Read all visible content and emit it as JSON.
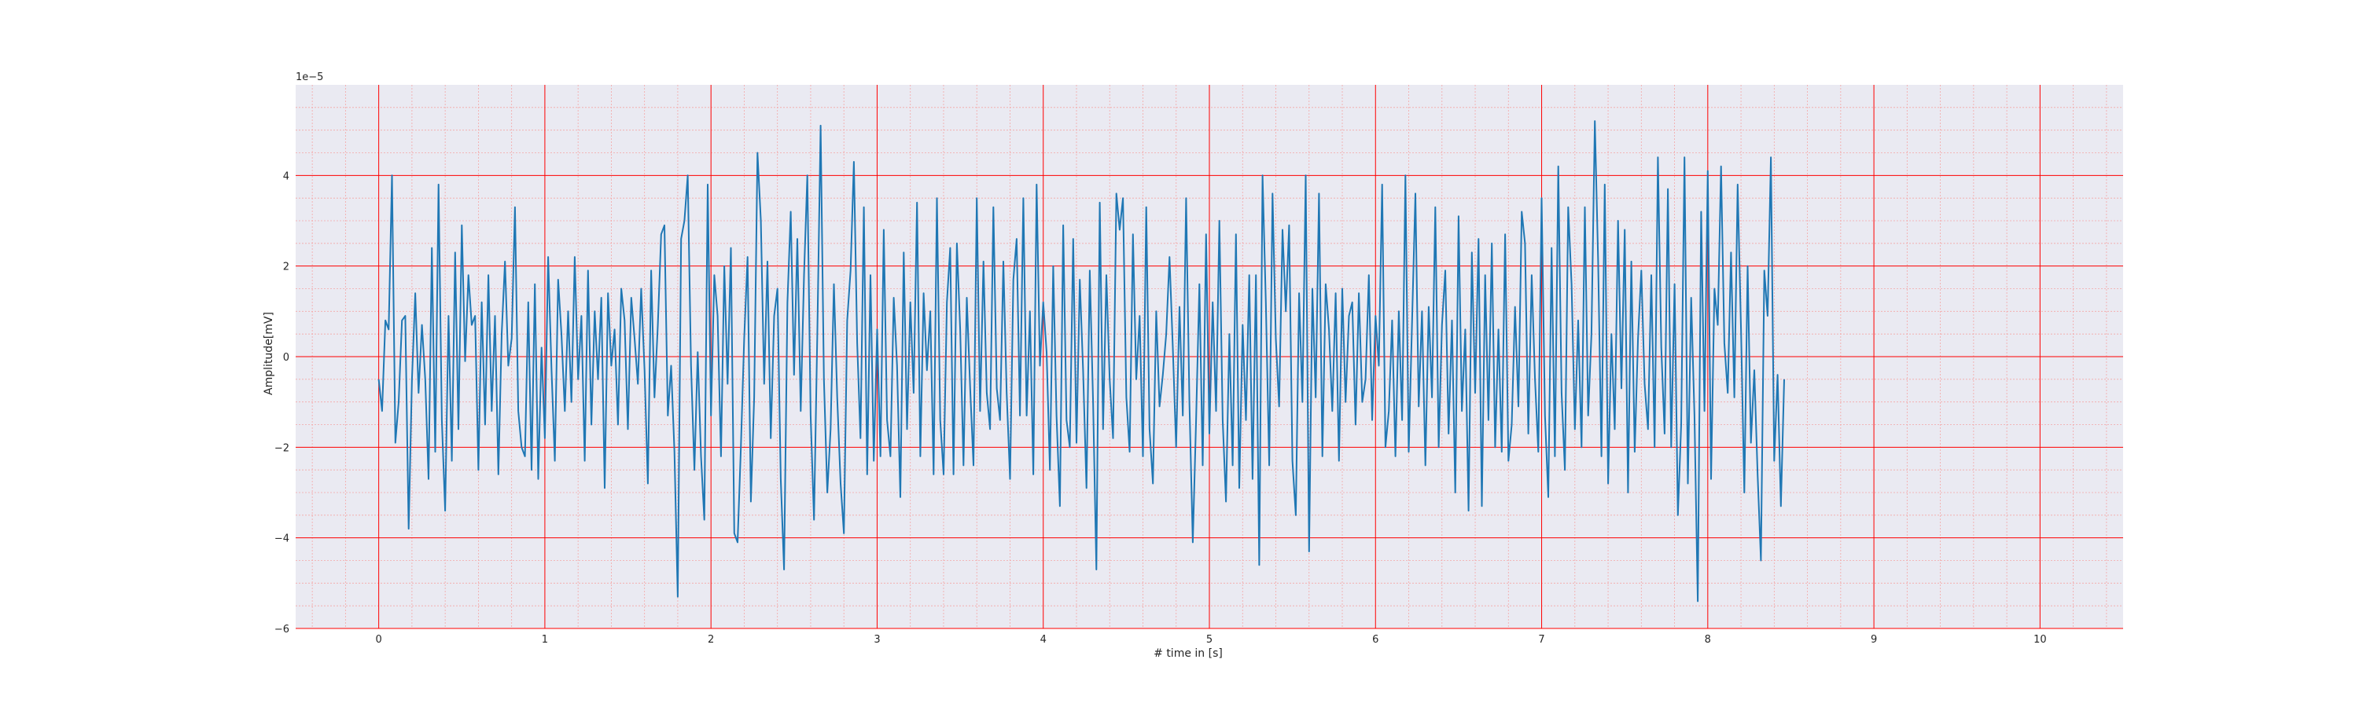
{
  "chart_data": {
    "type": "line",
    "title": "",
    "xlabel": "# time in [s]",
    "ylabel": "Amplitude[mV]",
    "offset_text": "1e−5",
    "xlim": [
      -0.5,
      10.5
    ],
    "ylim": [
      -6,
      6
    ],
    "y_scale_factor": 1e-05,
    "xticks": [
      0,
      1,
      2,
      3,
      4,
      5,
      6,
      7,
      8,
      9,
      10
    ],
    "xtick_labels": [
      "0",
      "1",
      "2",
      "3",
      "4",
      "5",
      "6",
      "7",
      "8",
      "9",
      "10"
    ],
    "yticks": [
      -6,
      -4,
      -2,
      0,
      2,
      4
    ],
    "ytick_labels": [
      "−6",
      "−4",
      "−2",
      "0",
      "2",
      "4"
    ],
    "grid": {
      "major": true,
      "minor": true,
      "major_color": "#ff0000",
      "minor_color": "#f4a6a6"
    },
    "plot_background": "#eaeaf2",
    "series": [
      {
        "color": "#1f77b4",
        "x_start": 0,
        "x_step": 0.02,
        "values": [
          -0.5,
          -1.2,
          0.8,
          0.6,
          4.0,
          -1.9,
          -1.0,
          0.8,
          0.9,
          -3.8,
          -0.5,
          1.4,
          -0.8,
          0.7,
          -0.5,
          -2.7,
          2.4,
          -2.1,
          3.8,
          -1.4,
          -3.4,
          0.9,
          -2.3,
          2.3,
          -1.6,
          2.9,
          -0.1,
          1.8,
          0.7,
          0.9,
          -2.5,
          1.2,
          -1.5,
          1.8,
          -1.2,
          0.9,
          -2.6,
          0.5,
          2.1,
          -0.2,
          0.4,
          3.3,
          -1.2,
          -2.0,
          -2.2,
          1.2,
          -2.5,
          1.6,
          -2.7,
          0.2,
          -1.8,
          2.2,
          -0.3,
          -2.3,
          1.7,
          0.5,
          -1.2,
          1.0,
          -1.0,
          2.2,
          -0.5,
          0.9,
          -2.3,
          1.9,
          -1.5,
          1.0,
          -0.5,
          1.3,
          -2.9,
          1.4,
          -0.2,
          0.6,
          -1.5,
          1.5,
          0.8,
          -1.6,
          1.3,
          0.4,
          -0.6,
          1.5,
          -0.3,
          -2.8,
          1.9,
          -0.9,
          0.7,
          2.7,
          2.9,
          -1.3,
          -0.2,
          -2.1,
          -5.3,
          2.6,
          3.0,
          4.0,
          -0.2,
          -2.5,
          0.1,
          -2.2,
          -3.6,
          3.8,
          -1.3,
          1.8,
          0.9,
          -2.2,
          2.0,
          -0.6,
          2.4,
          -3.9,
          -4.1,
          -2.0,
          0.4,
          2.2,
          -3.2,
          -0.9,
          4.5,
          3.0,
          -0.6,
          2.1,
          -1.8,
          0.9,
          1.5,
          -2.7,
          -4.7,
          1.2,
          3.2,
          -0.4,
          2.6,
          -1.2,
          1.8,
          4.0,
          -1.3,
          -3.6,
          0.5,
          5.1,
          -0.5,
          -3.0,
          -1.6,
          1.6,
          -0.9,
          -2.8,
          -3.9,
          0.8,
          1.9,
          4.3,
          0.3,
          -1.8,
          3.3,
          -2.6,
          1.8,
          -2.3,
          0.6,
          -2.2,
          2.8,
          -1.4,
          -2.2,
          1.3,
          -0.2,
          -3.1,
          2.3,
          -1.6,
          1.2,
          -0.8,
          3.4,
          -2.2,
          1.4,
          -0.3,
          1.0,
          -2.6,
          3.5,
          -1.4,
          -2.6,
          1.2,
          2.4,
          -2.6,
          2.5,
          0.6,
          -2.4,
          1.3,
          -0.7,
          -2.4,
          3.5,
          -1.2,
          2.1,
          -0.8,
          -1.6,
          3.3,
          -0.7,
          -1.4,
          2.1,
          -0.8,
          -2.7,
          1.7,
          2.6,
          -1.3,
          3.5,
          -1.3,
          1.0,
          -2.6,
          3.8,
          -0.2,
          1.2,
          0.1,
          -2.5,
          2.0,
          -1.3,
          -3.3,
          2.9,
          -1.4,
          -2.0,
          2.6,
          -1.9,
          1.7,
          -0.3,
          -2.9,
          1.9,
          -1.0,
          -4.7,
          3.4,
          -1.6,
          1.8,
          -0.5,
          -1.8,
          3.6,
          2.8,
          3.5,
          -0.9,
          -2.1,
          2.7,
          -0.5,
          0.9,
          -2.2,
          3.3,
          -1.6,
          -2.8,
          1.0,
          -1.1,
          -0.4,
          0.5,
          2.2,
          0.2,
          -2.0,
          1.1,
          -1.3,
          3.5,
          -1.0,
          -4.1,
          -1.4,
          1.6,
          -2.4,
          2.7,
          -1.7,
          1.2,
          -1.2,
          3.0,
          -1.4,
          -3.2,
          0.5,
          -2.4,
          2.7,
          -2.9,
          0.7,
          -1.4,
          1.8,
          -2.7,
          1.8,
          -4.6,
          4.0,
          1.2,
          -2.4,
          3.6,
          0.4,
          -1.1,
          2.8,
          1.0,
          2.9,
          -2.3,
          -3.5,
          1.4,
          -1.0,
          4.0,
          -4.3,
          1.5,
          -0.9,
          3.6,
          -2.2,
          1.6,
          0.6,
          -1.2,
          1.4,
          -2.3,
          1.5,
          -1.0,
          0.9,
          1.2,
          -1.5,
          1.4,
          -1.0,
          -0.5,
          1.8,
          -1.4,
          0.9,
          -0.2,
          3.8,
          -2.0,
          -1.2,
          0.8,
          -2.2,
          1.0,
          -1.4,
          4.0,
          -2.1,
          0.8,
          3.6,
          -1.1,
          1.0,
          -2.4,
          1.1,
          -0.9,
          3.3,
          -2.0,
          0.7,
          1.9,
          -1.7,
          0.8,
          -3.0,
          3.1,
          -1.2,
          0.6,
          -3.4,
          2.3,
          -0.8,
          2.6,
          -3.3,
          1.8,
          -1.4,
          2.5,
          -2.0,
          0.6,
          -2.1,
          2.7,
          -2.3,
          -1.5,
          1.1,
          -1.1,
          3.2,
          2.5,
          -1.7,
          1.8,
          -0.5,
          -2.1,
          3.5,
          -1.3,
          -3.1,
          2.4,
          -2.2,
          4.2,
          -0.8,
          -2.5,
          3.3,
          1.6,
          -1.6,
          0.8,
          -2.0,
          3.3,
          -1.3,
          0.5,
          5.2,
          2.1,
          -2.2,
          3.8,
          -2.8,
          0.5,
          -1.6,
          3.0,
          -0.7,
          2.8,
          -3.0,
          2.1,
          -2.1,
          0.4,
          1.9,
          -0.6,
          -1.6,
          1.8,
          -2.0,
          4.4,
          0.2,
          -1.7,
          3.7,
          -2.0,
          1.6,
          -3.5,
          -1.5,
          4.4,
          -2.8,
          1.3,
          -1.3,
          -5.4,
          3.2,
          -1.2,
          4.1,
          -2.7,
          1.5,
          0.7,
          4.2,
          0.3,
          -0.8,
          2.3,
          -0.9,
          3.8,
          0.6,
          -3.0,
          2.0,
          -1.9,
          -0.3,
          -2.6,
          -4.5,
          1.9,
          0.9,
          4.4,
          -2.3,
          -0.4,
          -3.3,
          -0.5
        ]
      }
    ]
  }
}
